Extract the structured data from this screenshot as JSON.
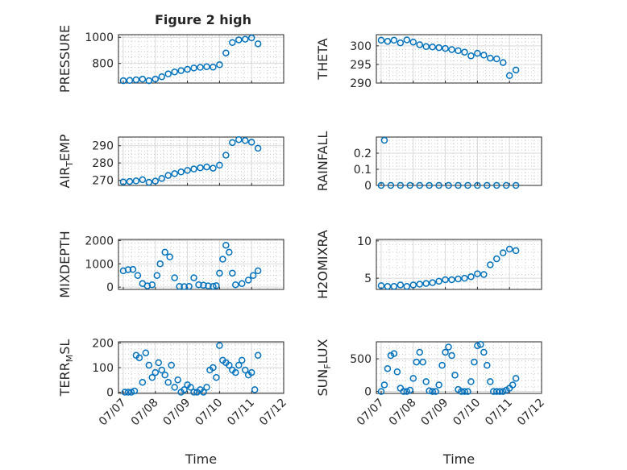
{
  "figure": {
    "title": "Figure 2 high"
  },
  "chart_data": [
    {
      "type": "scatter",
      "xlabel": "",
      "ylabel": "PRESSURE",
      "ylim": [
        650,
        1020
      ],
      "yticks": [
        800,
        1000
      ],
      "ytick_labels": [
        "800",
        "1000"
      ],
      "x": [
        0.0,
        0.2,
        0.4,
        0.6,
        0.8,
        1.0,
        1.2,
        1.4,
        1.6,
        1.8,
        2.0,
        2.2,
        2.4,
        2.6,
        2.8,
        3.0,
        3.2,
        3.4,
        3.6,
        3.8,
        4.0,
        4.2
      ],
      "y": [
        668,
        670,
        675,
        680,
        668,
        680,
        698,
        720,
        735,
        745,
        755,
        765,
        770,
        775,
        772,
        790,
        880,
        960,
        980,
        985,
        995,
        950
      ]
    },
    {
      "type": "scatter",
      "xlabel": "",
      "ylabel": "THETA",
      "ylim": [
        290,
        303
      ],
      "yticks": [
        290,
        295,
        300
      ],
      "ytick_labels": [
        "290",
        "295",
        "300"
      ],
      "x": [
        0.0,
        0.2,
        0.4,
        0.6,
        0.8,
        1.0,
        1.2,
        1.4,
        1.6,
        1.8,
        2.0,
        2.2,
        2.4,
        2.6,
        2.8,
        3.0,
        3.2,
        3.4,
        3.6,
        3.8,
        4.0,
        4.2
      ],
      "y": [
        301.5,
        301.2,
        301.5,
        300.8,
        301.6,
        301.0,
        300.3,
        299.8,
        299.7,
        299.5,
        299.3,
        299.0,
        298.7,
        298.3,
        297.3,
        298.0,
        297.5,
        296.7,
        296.5,
        295.5,
        292.0,
        293.5
      ]
    },
    {
      "type": "scatter",
      "xlabel": "",
      "ylabel": "AIR_TEMP",
      "ylim": [
        267,
        295
      ],
      "yticks": [
        270,
        280,
        290
      ],
      "ytick_labels": [
        "270",
        "280",
        "290"
      ],
      "x": [
        0.0,
        0.2,
        0.4,
        0.6,
        0.8,
        1.0,
        1.2,
        1.4,
        1.6,
        1.8,
        2.0,
        2.2,
        2.4,
        2.6,
        2.8,
        3.0,
        3.2,
        3.4,
        3.6,
        3.8,
        4.0,
        4.2
      ],
      "y": [
        269.0,
        269.3,
        269.6,
        270.3,
        268.8,
        269.5,
        271.0,
        272.8,
        273.8,
        274.8,
        275.7,
        276.5,
        277.2,
        277.7,
        277.0,
        278.7,
        284.5,
        291.8,
        293.5,
        293.0,
        292.0,
        288.5
      ]
    },
    {
      "type": "scatter",
      "xlabel": "",
      "ylabel": "RAINFALL",
      "ylim": [
        0,
        0.3
      ],
      "yticks": [
        0,
        0.1,
        0.2
      ],
      "ytick_labels": [
        "0",
        "0.1",
        "0.2"
      ],
      "x": [
        0.0,
        0.1,
        0.3,
        0.6,
        0.9,
        1.2,
        1.5,
        1.8,
        2.1,
        2.4,
        2.7,
        3.0,
        3.3,
        3.6,
        3.9,
        4.2
      ],
      "y": [
        0,
        0.28,
        0,
        0,
        0,
        0,
        0,
        0,
        0,
        0,
        0,
        0,
        0,
        0,
        0,
        0
      ]
    },
    {
      "type": "scatter",
      "xlabel": "",
      "ylabel": "MIXDEPTH",
      "ylim": [
        -100,
        2050
      ],
      "yticks": [
        0,
        1000,
        2000
      ],
      "ytick_labels": [
        "0",
        "1000",
        "2000"
      ],
      "x": [
        0.0,
        0.15,
        0.3,
        0.45,
        0.6,
        0.75,
        0.9,
        1.05,
        1.15,
        1.3,
        1.45,
        1.6,
        1.75,
        1.9,
        2.05,
        2.2,
        2.35,
        2.5,
        2.65,
        2.8,
        2.9,
        3.0,
        3.1,
        3.2,
        3.3,
        3.4,
        3.5,
        3.7,
        3.9,
        4.05,
        4.2
      ],
      "y": [
        700,
        750,
        760,
        500,
        150,
        50,
        100,
        500,
        1000,
        1500,
        1300,
        400,
        30,
        20,
        30,
        400,
        100,
        80,
        50,
        30,
        60,
        600,
        1200,
        1800,
        1500,
        600,
        100,
        150,
        300,
        500,
        700
      ]
    },
    {
      "type": "scatter",
      "xlabel": "",
      "ylabel": "H2OMIXRA",
      "ylim": [
        3.5,
        10.2
      ],
      "yticks": [
        5,
        10
      ],
      "ytick_labels": [
        "5",
        "10"
      ],
      "x": [
        0.0,
        0.2,
        0.4,
        0.6,
        0.8,
        1.0,
        1.2,
        1.4,
        1.6,
        1.8,
        2.0,
        2.2,
        2.4,
        2.6,
        2.8,
        3.0,
        3.2,
        3.4,
        3.6,
        3.8,
        4.0,
        4.2
      ],
      "y": [
        4.0,
        3.9,
        3.9,
        4.1,
        3.9,
        4.1,
        4.2,
        4.3,
        4.4,
        4.6,
        4.8,
        4.8,
        4.9,
        5.0,
        5.2,
        5.6,
        5.5,
        6.8,
        7.6,
        8.4,
        8.9,
        8.7
      ]
    },
    {
      "type": "scatter",
      "xlabel": "Time",
      "ylabel": "TERR_MSL",
      "ylim": [
        -5,
        205
      ],
      "yticks": [
        0,
        100,
        200
      ],
      "ytick_labels": [
        "0",
        "100",
        "200"
      ],
      "xticks": [
        0,
        1,
        2,
        3,
        4,
        5
      ],
      "xtick_labels": [
        "07/07",
        "07/08",
        "07/09",
        "07/10",
        "07/11",
        "07/12"
      ],
      "x": [
        0.05,
        0.15,
        0.25,
        0.35,
        0.4,
        0.5,
        0.6,
        0.7,
        0.8,
        0.9,
        1.0,
        1.1,
        1.2,
        1.3,
        1.4,
        1.5,
        1.6,
        1.7,
        1.8,
        1.9,
        2.0,
        2.1,
        2.2,
        2.3,
        2.4,
        2.5,
        2.6,
        2.7,
        2.8,
        2.9,
        3.0,
        3.1,
        3.2,
        3.3,
        3.4,
        3.5,
        3.6,
        3.7,
        3.8,
        3.9,
        4.0,
        4.1,
        4.2
      ],
      "y": [
        0,
        0,
        0,
        5,
        150,
        140,
        40,
        160,
        110,
        60,
        80,
        120,
        90,
        70,
        40,
        110,
        20,
        50,
        0,
        10,
        30,
        20,
        0,
        0,
        10,
        0,
        20,
        90,
        100,
        60,
        190,
        130,
        120,
        110,
        90,
        80,
        110,
        130,
        90,
        70,
        80,
        10,
        150
      ]
    },
    {
      "type": "scatter",
      "xlabel": "Time",
      "ylabel": "SUN_FLUX",
      "ylim": [
        -30,
        760
      ],
      "yticks": [
        0,
        500
      ],
      "ytick_labels": [
        "0",
        "500"
      ],
      "xticks": [
        0,
        1,
        2,
        3,
        4,
        5
      ],
      "xtick_labels": [
        "07/07",
        "07/08",
        "07/09",
        "07/10",
        "07/11",
        "07/12"
      ],
      "x": [
        0.0,
        0.1,
        0.2,
        0.3,
        0.4,
        0.5,
        0.6,
        0.7,
        0.8,
        0.9,
        1.0,
        1.1,
        1.2,
        1.3,
        1.4,
        1.5,
        1.6,
        1.7,
        1.8,
        1.9,
        2.0,
        2.1,
        2.2,
        2.3,
        2.4,
        2.5,
        2.6,
        2.7,
        2.8,
        2.9,
        3.0,
        3.1,
        3.2,
        3.3,
        3.4,
        3.5,
        3.6,
        3.7,
        3.8,
        3.9,
        4.0,
        4.1,
        4.2
      ],
      "y": [
        0,
        100,
        350,
        550,
        580,
        300,
        50,
        0,
        0,
        20,
        200,
        450,
        600,
        450,
        150,
        10,
        0,
        0,
        100,
        400,
        600,
        680,
        550,
        250,
        30,
        0,
        0,
        0,
        150,
        450,
        700,
        720,
        600,
        400,
        150,
        0,
        0,
        0,
        0,
        20,
        50,
        100,
        200
      ]
    }
  ]
}
